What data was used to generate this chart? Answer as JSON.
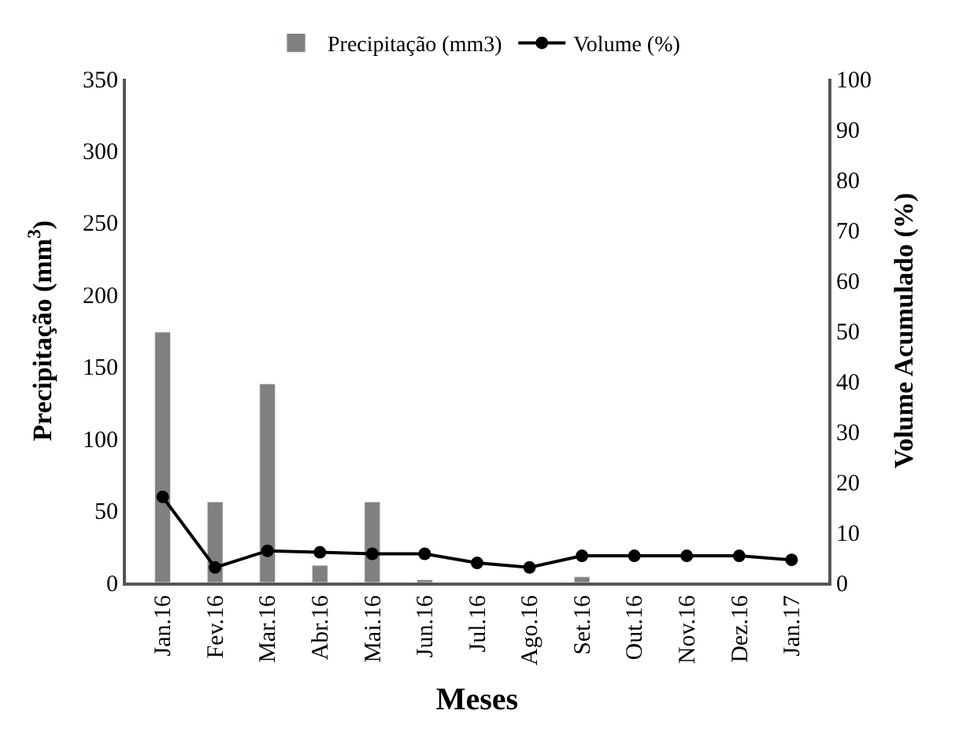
{
  "chart_data": {
    "type": "bar",
    "xlabel": "Meses",
    "ylabel": "Precipitação (mm$^{3}$)",
    "y2label": "Volume Acumulado (%)",
    "categories": [
      "Jan.16",
      "Fev.16",
      "Mar.16",
      "Abr.16",
      "Mai.16",
      "Jun.16",
      "Jul.16",
      "Ago.16",
      "Set.16",
      "Out.16",
      "Nov.16",
      "Dez.16",
      "Jan.17"
    ],
    "series": [
      {
        "name": "Precipitação (mm3)",
        "color": "#808080",
        "values": [
          174,
          56,
          138,
          12,
          56,
          2,
          null,
          null,
          4,
          null,
          null,
          null,
          null
        ]
      },
      {
        "name": "Volume (%)",
        "type": "line",
        "axis": "y2",
        "color": "#000000",
        "marker": "circle",
        "values": [
          17,
          3,
          6.3,
          6,
          5.7,
          5.7,
          3.9,
          3,
          5.3,
          5.3,
          5.3,
          5.3,
          4.5
        ]
      }
    ],
    "ylim": [
      0,
      350
    ],
    "yticks": [
      0,
      50,
      100,
      150,
      200,
      250,
      300,
      350
    ],
    "y2lim": [
      0,
      100
    ],
    "y2ticks": [
      0,
      10,
      20,
      30,
      40,
      50,
      60,
      70,
      80,
      90,
      100
    ],
    "legend": "top"
  }
}
